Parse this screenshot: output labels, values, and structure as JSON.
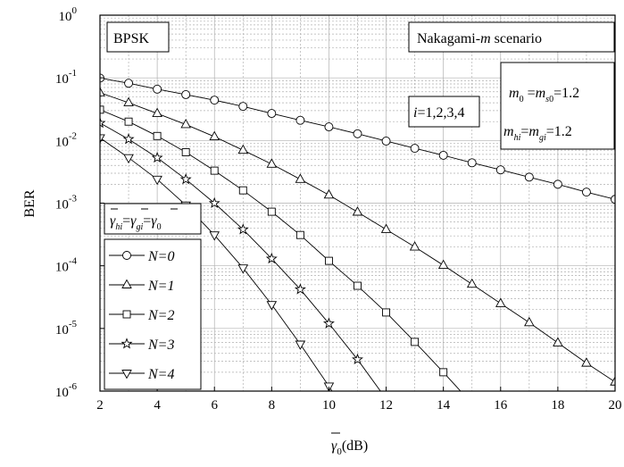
{
  "chart_data": {
    "type": "line",
    "xlabel": "γ̄₀(dB)",
    "ylabel": "BER",
    "xlim": [
      2,
      20
    ],
    "ylim": [
      1e-06,
      1
    ],
    "yscale": "log",
    "grid": true,
    "x_ticks": [
      2,
      4,
      6,
      8,
      10,
      12,
      14,
      16,
      18,
      20
    ],
    "y_tick_exponents": [
      0,
      -1,
      -2,
      -3,
      -4,
      -5,
      -6
    ],
    "legend_placement": "lower-left",
    "annotations": {
      "modulation": "BPSK",
      "scenario": "Nakagami-m scenario",
      "index": "i=1,2,3,4",
      "m_params_1": "m0 =ms0=1.2",
      "m_params_2": "mhi=mgi=1.2",
      "snr_relation": "γ̄hi=γ̄gi=γ̄0"
    },
    "series": [
      {
        "name": "N=0",
        "marker": "circle",
        "x": [
          2,
          3,
          4,
          5,
          6,
          7,
          8,
          9,
          10,
          11,
          12,
          13,
          14,
          15,
          16,
          17,
          18,
          19,
          20
        ],
        "y": [
          0.099,
          0.082,
          0.066,
          0.054,
          0.044,
          0.035,
          0.027,
          0.021,
          0.0165,
          0.0128,
          0.0098,
          0.0075,
          0.0058,
          0.0044,
          0.0034,
          0.0026,
          0.002,
          0.0015,
          0.00115
        ]
      },
      {
        "name": "N=1",
        "marker": "triangle-up",
        "x": [
          2,
          3,
          4,
          5,
          6,
          7,
          8,
          9,
          10,
          11,
          12,
          13,
          14,
          15,
          16,
          17,
          18,
          19,
          20
        ],
        "y": [
          0.058,
          0.04,
          0.027,
          0.018,
          0.0115,
          0.007,
          0.0042,
          0.0024,
          0.00135,
          0.00072,
          0.00038,
          0.0002,
          0.000102,
          5.1e-05,
          2.5e-05,
          1.24e-05,
          5.9e-06,
          2.8e-06,
          1.4e-06
        ]
      },
      {
        "name": "N=2",
        "marker": "square",
        "x": [
          2,
          3,
          4,
          5,
          6,
          7,
          8,
          9,
          10,
          11,
          12,
          13,
          14,
          15
        ],
        "y": [
          0.031,
          0.02,
          0.0118,
          0.0065,
          0.0033,
          0.0016,
          0.00073,
          0.00031,
          0.00012,
          4.8e-05,
          1.8e-05,
          6.1e-06,
          2e-06,
          6.3e-07
        ]
      },
      {
        "name": "N=3",
        "marker": "star",
        "x": [
          2,
          3,
          4,
          5,
          6,
          7,
          8,
          9,
          10,
          11,
          12
        ],
        "y": [
          0.019,
          0.0105,
          0.0053,
          0.0024,
          0.001,
          0.00038,
          0.00013,
          4.2e-05,
          1.2e-05,
          3.2e-06,
          7.5e-07
        ]
      },
      {
        "name": "N=4",
        "marker": "triangle-down",
        "x": [
          2,
          3,
          4,
          5,
          6,
          7,
          8,
          9,
          10,
          11
        ],
        "y": [
          0.011,
          0.0053,
          0.0024,
          0.00093,
          0.00031,
          9.2e-05,
          2.4e-05,
          5.6e-06,
          1.2e-06,
          2.2e-07
        ]
      }
    ]
  }
}
